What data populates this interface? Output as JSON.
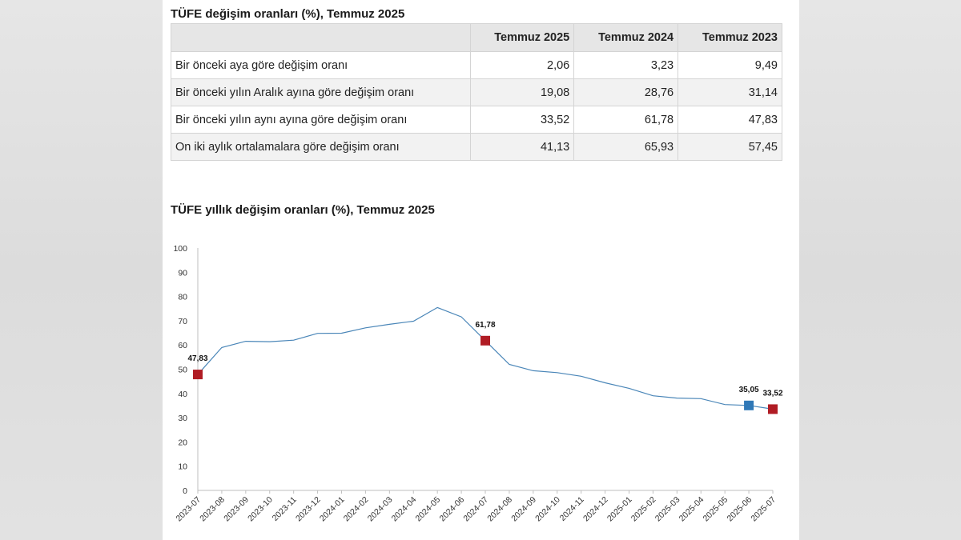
{
  "table": {
    "title": "TÜFE değişim oranları (%), Temmuz 2025",
    "headers": [
      "",
      "Temmuz 2025",
      "Temmuz 2024",
      "Temmuz 2023"
    ],
    "rows": [
      [
        "Bir önceki aya göre değişim oranı",
        "2,06",
        "3,23",
        "9,49"
      ],
      [
        "Bir önceki yılın Aralık ayına göre değişim oranı",
        "19,08",
        "28,76",
        "31,14"
      ],
      [
        "Bir önceki yılın aynı ayına göre değişim oranı",
        "33,52",
        "61,78",
        "47,83"
      ],
      [
        "On iki aylık ortalamalara göre değişim oranı",
        "41,13",
        "65,93",
        "57,45"
      ]
    ]
  },
  "chart_data": {
    "type": "line",
    "title": "TÜFE yıllık değişim oranları (%), Temmuz 2025",
    "xlabel": "",
    "ylabel": "",
    "ylim": [
      0,
      100
    ],
    "yticks": [
      0,
      10,
      20,
      30,
      40,
      50,
      60,
      70,
      80,
      90,
      100
    ],
    "categories": [
      "2023-07",
      "2023-08",
      "2023-09",
      "2023-10",
      "2023-11",
      "2023-12",
      "2024-01",
      "2024-02",
      "2024-03",
      "2024-04",
      "2024-05",
      "2024-06",
      "2024-07",
      "2024-08",
      "2024-09",
      "2024-10",
      "2024-11",
      "2024-12",
      "2025-01",
      "2025-02",
      "2025-03",
      "2025-04",
      "2025-05",
      "2025-06",
      "2025-07"
    ],
    "series": [
      {
        "values": [
          47.83,
          58.94,
          61.53,
          61.36,
          61.98,
          64.77,
          64.86,
          67.07,
          68.5,
          69.8,
          75.45,
          71.6,
          61.78,
          51.97,
          49.38,
          48.58,
          47.09,
          44.38,
          42.12,
          39.05,
          38.1,
          37.86,
          35.41,
          35.05,
          33.52
        ],
        "color": "#4a86b8"
      }
    ],
    "markers": [
      {
        "index": 0,
        "label": "47,83",
        "color": "#b01c24"
      },
      {
        "index": 12,
        "label": "61,78",
        "color": "#b01c24"
      },
      {
        "index": 23,
        "label": "35,05",
        "color": "#2f78b7"
      },
      {
        "index": 24,
        "label": "33,52",
        "color": "#b01c24"
      }
    ],
    "grid": false,
    "legend": "none"
  }
}
